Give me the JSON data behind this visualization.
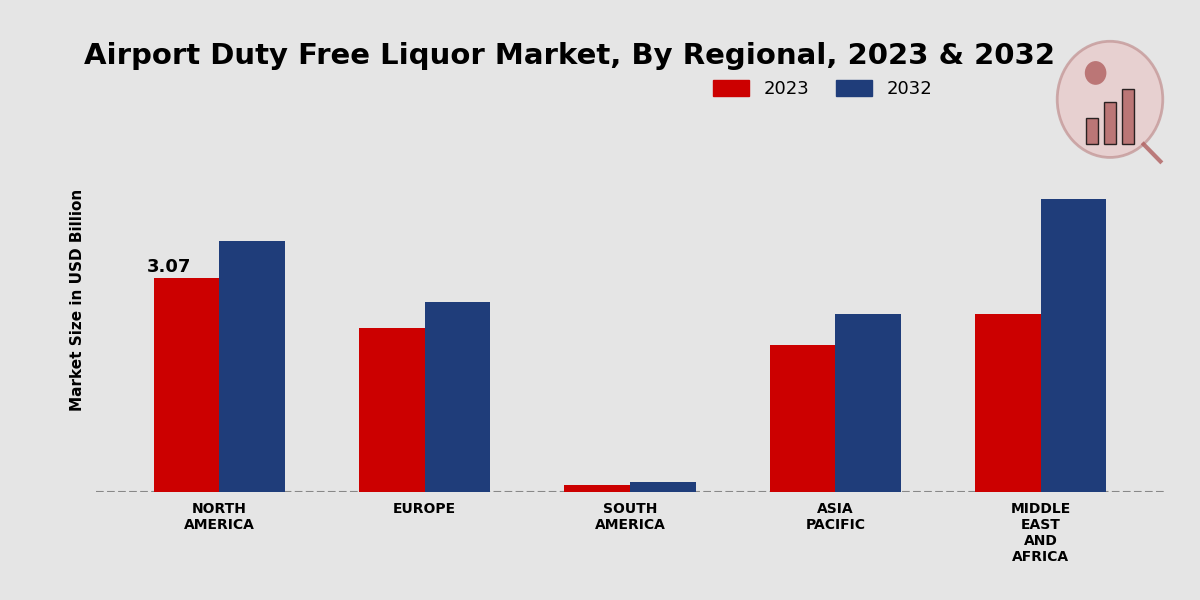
{
  "title": "Airport Duty Free Liquor Market, By Regional, 2023 & 2032",
  "ylabel": "Market Size in USD Billion",
  "categories": [
    "NORTH\nAMERICA",
    "EUROPE",
    "SOUTH\nAMERICA",
    "ASIA\nPACIFIC",
    "MIDDLE\nEAST\nAND\nAFRICA"
  ],
  "values_2023": [
    3.07,
    2.35,
    0.1,
    2.1,
    2.55
  ],
  "values_2032": [
    3.6,
    2.72,
    0.14,
    2.55,
    4.2
  ],
  "color_2023": "#cc0000",
  "color_2032": "#1f3d7a",
  "annotation_value": "3.07",
  "annotation_region_idx": 0,
  "bar_width": 0.32,
  "background_color": "#e5e5e5",
  "dashed_line_y": 0.0,
  "ylim": [
    0.0,
    5.5
  ],
  "legend_labels": [
    "2023",
    "2032"
  ],
  "title_fontsize": 21,
  "label_fontsize": 11,
  "tick_fontsize": 10,
  "legend_fontsize": 13,
  "bottom_bar_color": "#cc0000",
  "logo_circle_color": "#d4a0a0",
  "logo_edge_color": "#c08080"
}
